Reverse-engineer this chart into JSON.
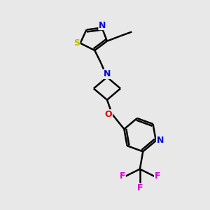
{
  "background_color": "#e8e8e8",
  "bond_color": "#000000",
  "bond_width": 1.8,
  "atom_colors": {
    "N": "#0000dd",
    "S": "#bbbb00",
    "O": "#dd0000",
    "F": "#dd00dd",
    "C": "#000000"
  },
  "figsize": [
    3.0,
    3.0
  ],
  "dpi": 100,
  "xlim": [
    0,
    10
  ],
  "ylim": [
    0,
    10
  ]
}
